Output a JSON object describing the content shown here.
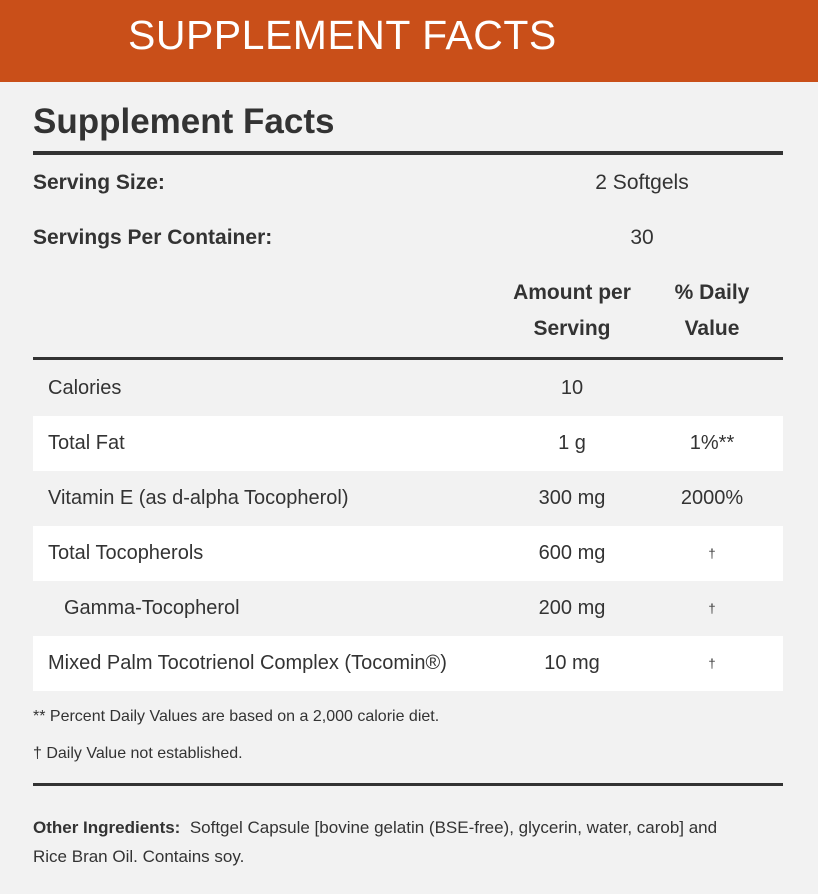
{
  "header": {
    "title": "SUPPLEMENT FACTS"
  },
  "panel": {
    "title": "Supplement Facts",
    "serving_size": {
      "label": "Serving Size:",
      "value": "2 Softgels"
    },
    "servings_per_container": {
      "label": "Servings Per Container:",
      "value": "30"
    },
    "columns": {
      "amount": "Amount per Serving",
      "daily_value": "% Daily Value"
    },
    "rows": [
      {
        "name": "Calories",
        "amount": "10",
        "daily_value": ""
      },
      {
        "name": "Total Fat",
        "amount": "1 g",
        "daily_value": "1%**"
      },
      {
        "name": "Vitamin E (as d-alpha Tocopherol)",
        "amount": "300 mg",
        "daily_value": "2000%"
      },
      {
        "name": "Total Tocopherols",
        "amount": "600 mg",
        "daily_value": "†"
      },
      {
        "name": "Gamma-Tocopherol",
        "amount": "200 mg",
        "daily_value": "†",
        "indent": true
      },
      {
        "name": "Mixed Palm Tocotrienol Complex (Tocomin®)",
        "amount": "10 mg",
        "daily_value": "†"
      }
    ],
    "footnotes": [
      "** Percent Daily Values are based on a 2,000 calorie diet.",
      "† Daily Value not established."
    ],
    "other_ingredients": {
      "label": "Other Ingredients:",
      "text": "Softgel Capsule [bovine gelatin (BSE-free), glycerin, water, carob] and Rice Bran Oil. Contains soy."
    }
  }
}
